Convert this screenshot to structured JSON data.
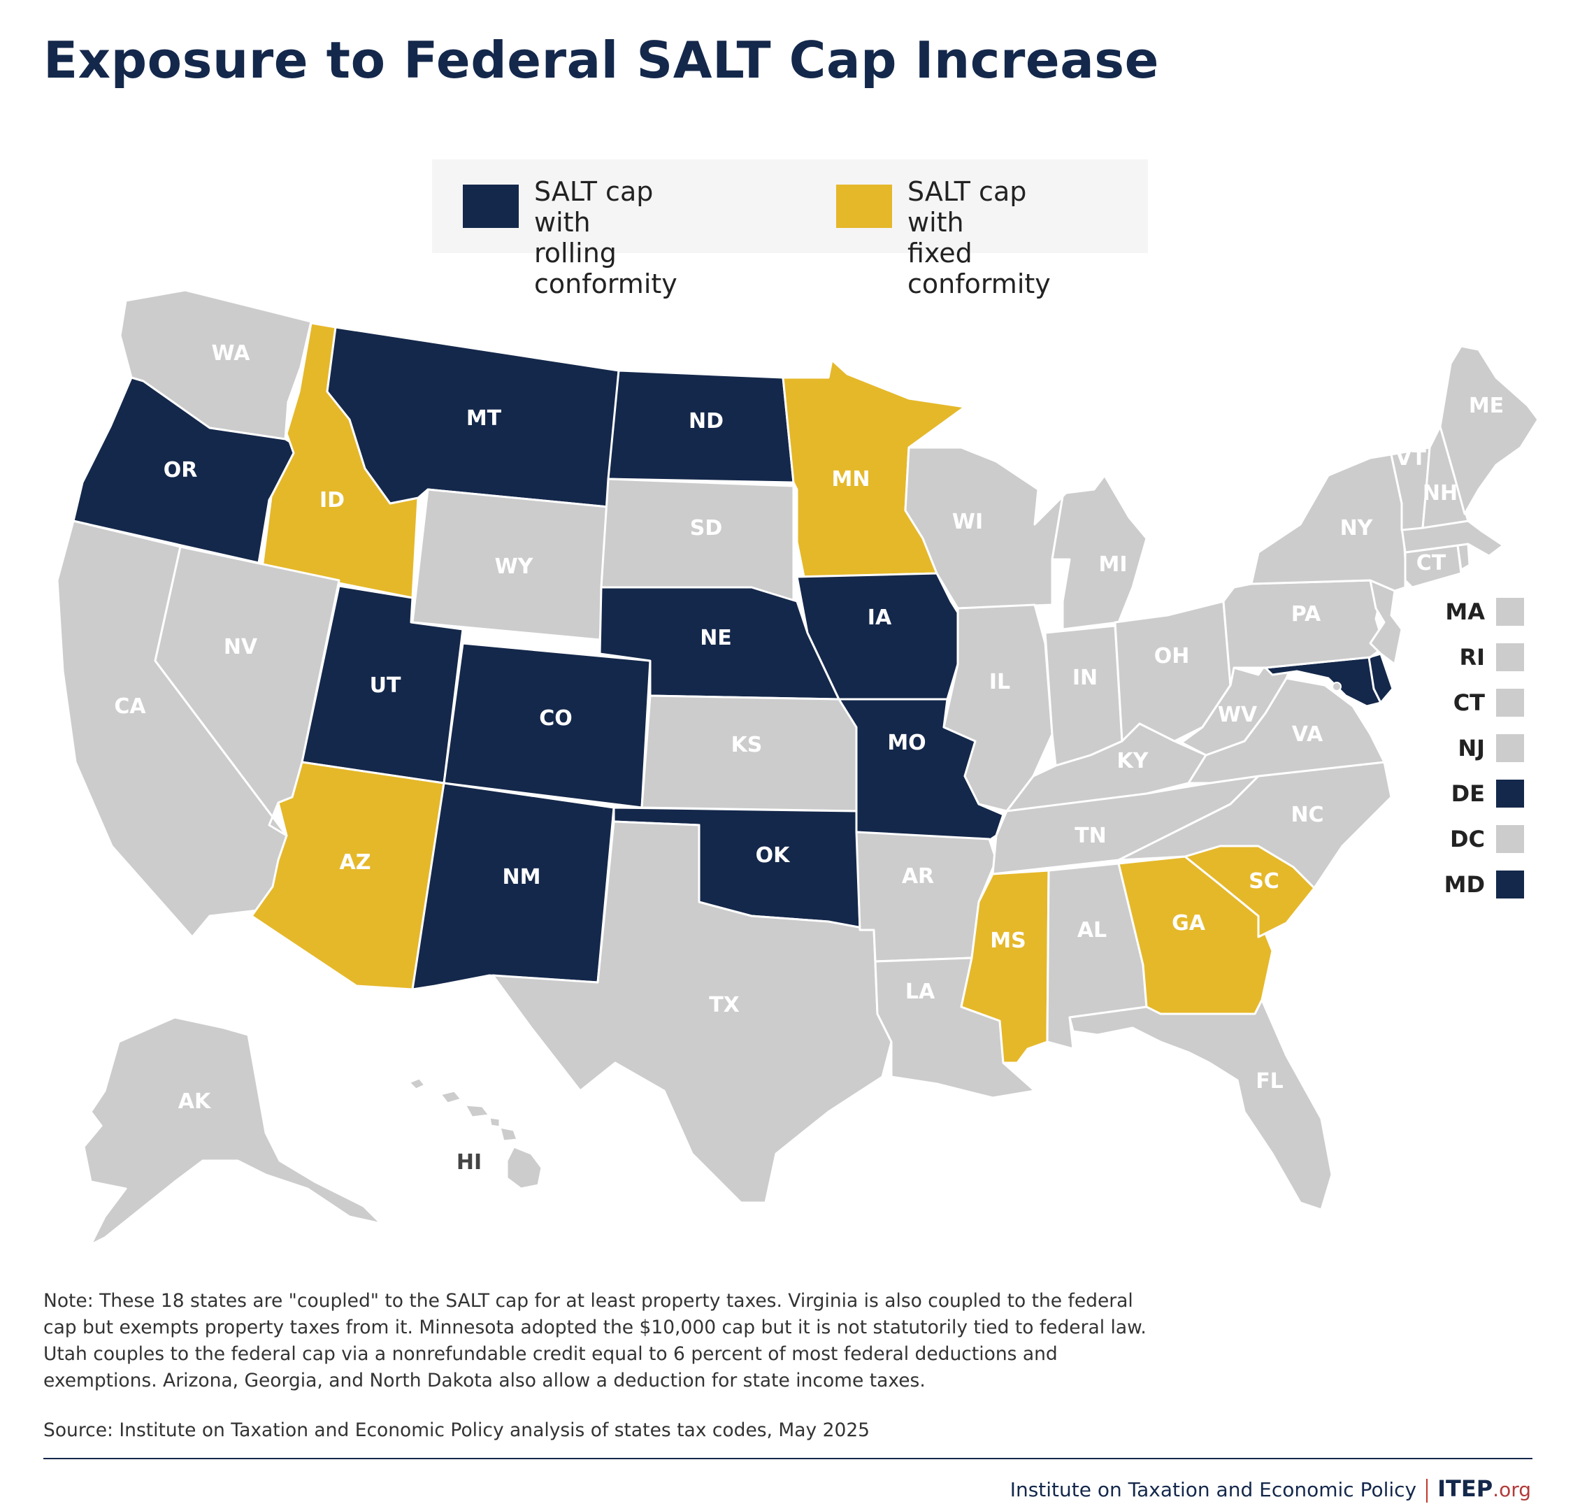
{
  "title": "Exposure to Federal SALT Cap Increase",
  "legend": {
    "rolling": {
      "label": "SALT cap with\nrolling conformity",
      "color": "#14284b"
    },
    "fixed": {
      "label": "SALT cap with\nfixed conformity",
      "color": "#e5b82a"
    }
  },
  "colors": {
    "none": "#cccccc",
    "rolling": "#14284b",
    "fixed": "#e5b82a"
  },
  "states": {
    "WA": "none",
    "OR": "rolling",
    "CA": "none",
    "ID": "fixed",
    "NV": "none",
    "MT": "rolling",
    "WY": "none",
    "UT": "rolling",
    "CO": "rolling",
    "AZ": "fixed",
    "NM": "rolling",
    "ND": "rolling",
    "SD": "none",
    "NE": "rolling",
    "KS": "none",
    "OK": "rolling",
    "TX": "none",
    "MN": "fixed",
    "IA": "rolling",
    "MO": "rolling",
    "AR": "none",
    "LA": "none",
    "WI": "none",
    "IL": "none",
    "MI": "none",
    "IN": "none",
    "OH": "none",
    "KY": "none",
    "TN": "none",
    "MS": "fixed",
    "AL": "none",
    "GA": "fixed",
    "FL": "none",
    "SC": "fixed",
    "NC": "none",
    "VA": "none",
    "WV": "none",
    "PA": "none",
    "NY": "none",
    "VT": "none",
    "NH": "none",
    "ME": "none",
    "MA": "none",
    "RI": "none",
    "CT": "none",
    "NJ": "none",
    "DE": "rolling",
    "MD": "rolling",
    "DC": "none",
    "AK": "none",
    "HI": "none"
  },
  "small_states": [
    {
      "code": "MA",
      "status": "none"
    },
    {
      "code": "RI",
      "status": "none"
    },
    {
      "code": "CT",
      "status": "none"
    },
    {
      "code": "NJ",
      "status": "none"
    },
    {
      "code": "DE",
      "status": "rolling"
    },
    {
      "code": "DC",
      "status": "none"
    },
    {
      "code": "MD",
      "status": "rolling"
    }
  ],
  "labels": {
    "WA": "WA",
    "OR": "OR",
    "CA": "CA",
    "ID": "ID",
    "NV": "NV",
    "MT": "MT",
    "WY": "WY",
    "UT": "UT",
    "CO": "CO",
    "AZ": "AZ",
    "NM": "NM",
    "ND": "ND",
    "SD": "SD",
    "NE": "NE",
    "KS": "KS",
    "OK": "OK",
    "TX": "TX",
    "MN": "MN",
    "IA": "IA",
    "MO": "MO",
    "AR": "AR",
    "LA": "LA",
    "WI": "WI",
    "IL": "IL",
    "MI": "MI",
    "IN": "IN",
    "OH": "OH",
    "KY": "KY",
    "TN": "TN",
    "MS": "MS",
    "AL": "AL",
    "GA": "GA",
    "FL": "FL",
    "SC": "SC",
    "NC": "NC",
    "VA": "VA",
    "WV": "WV",
    "PA": "PA",
    "NY": "NY",
    "VT": "VT",
    "NH": "NH",
    "ME": "ME",
    "CT": "CT",
    "AK": "AK",
    "HI": "HI"
  },
  "note": "Note: These 18 states are \"coupled\" to the SALT cap for at least property taxes. Virginia is also coupled to the federal cap but exempts property taxes from it. Minnesota adopted the $10,000 cap but it is not statutorily tied to federal law. Utah couples to the federal cap via a nonrefundable credit equal to 6 percent of most federal deductions and exemptions. Arizona, Georgia, and North Dakota also allow a deduction for state income taxes.",
  "source": "Source: Institute on Taxation and Economic Policy analysis of states tax codes, May 2025",
  "footer": {
    "org_name": "Institute on Taxation and Economic Policy",
    "logo_main": "ITEP",
    "logo_suffix": ".org"
  }
}
